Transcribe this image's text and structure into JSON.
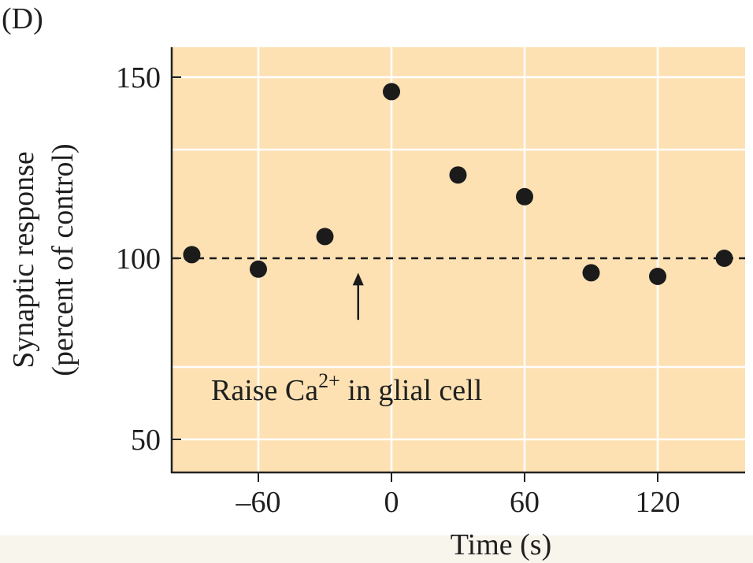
{
  "panel_label": "(D)",
  "chart_data": {
    "type": "scatter",
    "title": "",
    "xlabel": "Time (s)",
    "ylabel_line1": "Synaptic response",
    "ylabel_line2": "(percent of control)",
    "xlim": [
      -100,
      150
    ],
    "ylim": [
      40,
      160
    ],
    "x_ticks": [
      -60,
      0,
      60,
      120
    ],
    "x_tick_labels": [
      "–60",
      "0",
      "60",
      "120"
    ],
    "y_ticks": [
      50,
      100,
      150
    ],
    "y_tick_labels": [
      "50",
      "100",
      "150"
    ],
    "x_gridlines": [
      -60,
      0,
      60,
      120
    ],
    "y_gridlines": [
      50,
      70,
      100,
      130,
      150
    ],
    "reference_line": {
      "y": 100,
      "style": "dashed"
    },
    "series": [
      {
        "name": "Synaptic response",
        "x": [
          -90,
          -60,
          -30,
          0,
          30,
          60,
          90,
          120,
          150
        ],
        "y": [
          101,
          97,
          106,
          146,
          123,
          117,
          96,
          95,
          100
        ]
      }
    ],
    "annotation": {
      "text": "Raise Ca",
      "superscript": "2+",
      "text_after": " in glial cell",
      "arrow_x": -15,
      "arrow_from_y": 83,
      "arrow_to_y": 96
    },
    "colors": {
      "plot_bg": "#fde1b3",
      "grid": "#ffffff",
      "points": "#1b1b1b",
      "axis": "#222222"
    }
  }
}
